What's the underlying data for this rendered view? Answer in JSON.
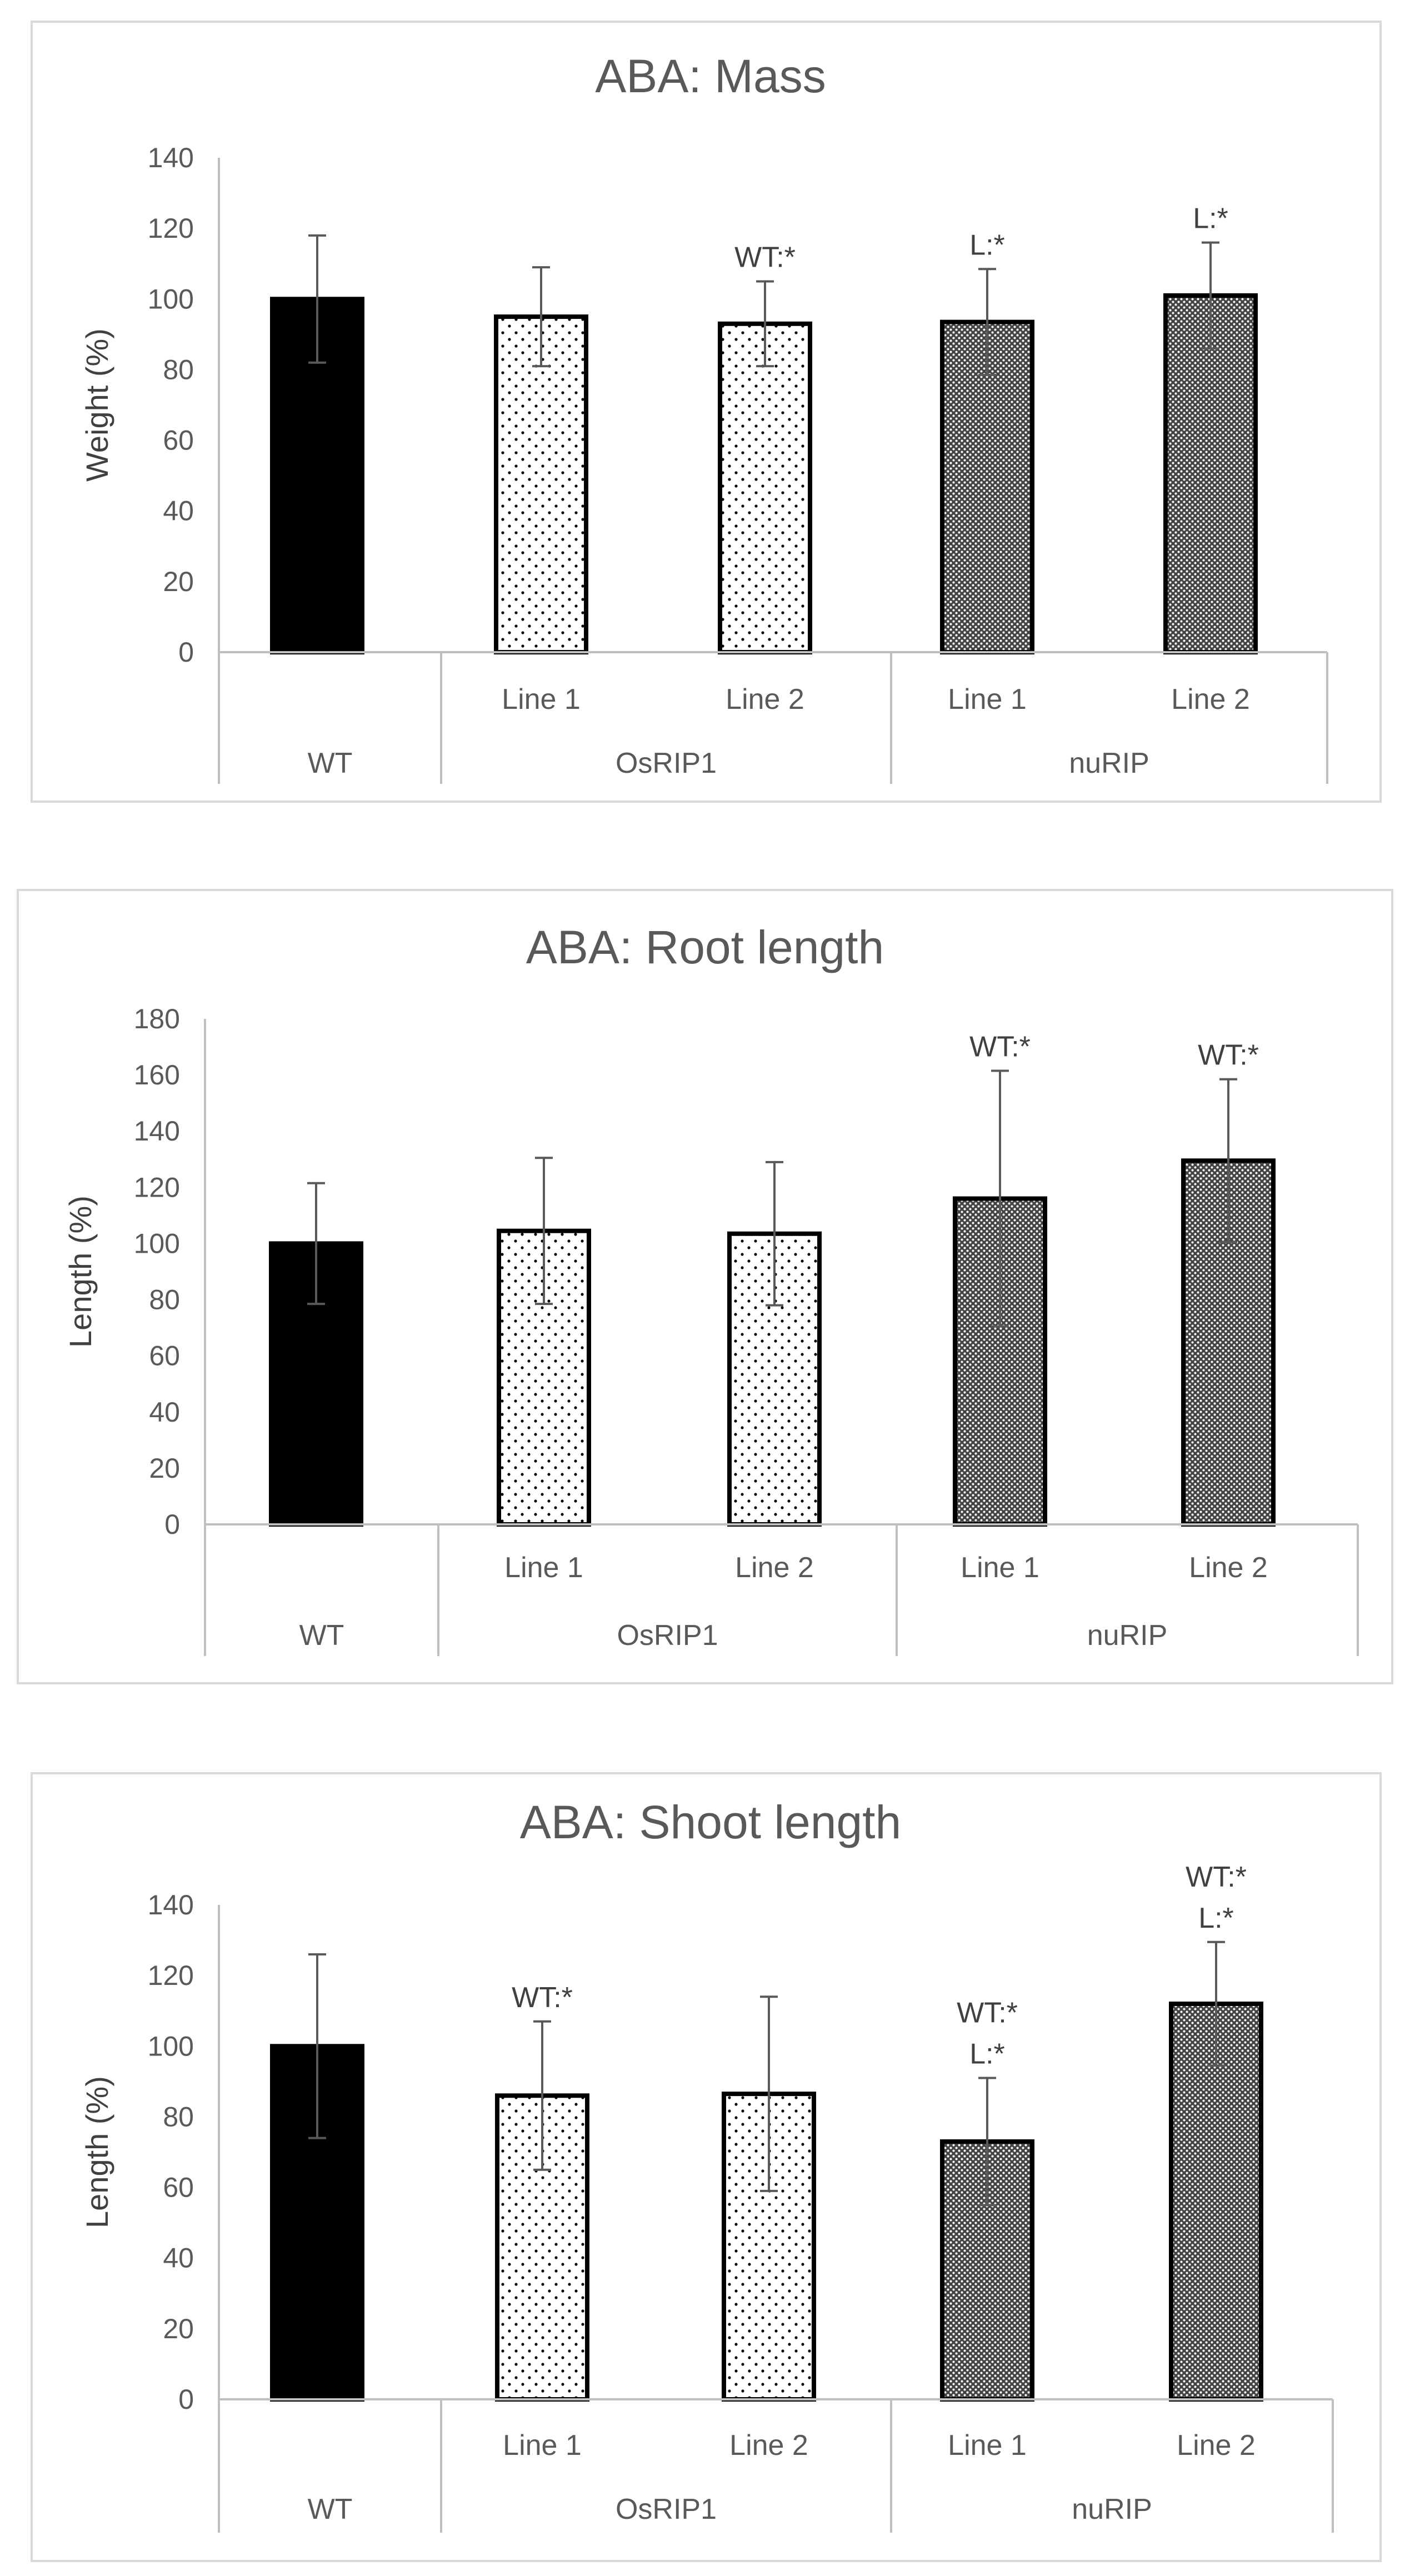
{
  "chart_data": [
    {
      "type": "bar",
      "title": "ABA: Mass",
      "ylabel": "Weight (%)",
      "xlabel": "",
      "ylim": [
        0,
        140
      ],
      "yticks": [
        0,
        20,
        40,
        60,
        80,
        100,
        120,
        140
      ],
      "groups": [
        {
          "label": "WT",
          "categories": [
            ""
          ]
        },
        {
          "label": "OsRIP1",
          "categories": [
            "Line 1",
            "Line 2"
          ]
        },
        {
          "label": "nuRIP",
          "categories": [
            "Line 1",
            "Line 2"
          ]
        }
      ],
      "bars": [
        {
          "group": "WT",
          "category": "",
          "value": 100,
          "error": 18,
          "annotation": []
        },
        {
          "group": "OsRIP1",
          "category": "Line 1",
          "value": 95,
          "error": 14,
          "annotation": []
        },
        {
          "group": "OsRIP1",
          "category": "Line 2",
          "value": 93,
          "error": 12,
          "annotation": [
            "WT:*"
          ]
        },
        {
          "group": "nuRIP",
          "category": "Line 1",
          "value": 93.5,
          "error": 15,
          "annotation": [
            "L:*"
          ]
        },
        {
          "group": "nuRIP",
          "category": "Line 2",
          "value": 101,
          "error": 15,
          "annotation": [
            "L:*"
          ]
        }
      ]
    },
    {
      "type": "bar",
      "title": "ABA: Root length",
      "ylabel": "Length (%)",
      "xlabel": "",
      "ylim": [
        0,
        180
      ],
      "yticks": [
        0,
        20,
        40,
        60,
        80,
        100,
        120,
        140,
        160,
        180
      ],
      "groups": [
        {
          "label": "WT",
          "categories": [
            ""
          ]
        },
        {
          "label": "OsRIP1",
          "categories": [
            "Line 1",
            "Line 2"
          ]
        },
        {
          "label": "nuRIP",
          "categories": [
            "Line 1",
            "Line 2"
          ]
        }
      ],
      "bars": [
        {
          "group": "WT",
          "category": "",
          "value": 100,
          "error": 21.5,
          "annotation": []
        },
        {
          "group": "OsRIP1",
          "category": "Line 1",
          "value": 104.5,
          "error": 26,
          "annotation": []
        },
        {
          "group": "OsRIP1",
          "category": "Line 2",
          "value": 103.5,
          "error": 25.5,
          "annotation": []
        },
        {
          "group": "nuRIP",
          "category": "Line 1",
          "value": 116,
          "error": 45.5,
          "annotation": [
            "WT:*"
          ]
        },
        {
          "group": "nuRIP",
          "category": "Line 2",
          "value": 129.5,
          "error": 29,
          "annotation": [
            "WT:*"
          ]
        }
      ]
    },
    {
      "type": "bar",
      "title": "ABA: Shoot length",
      "ylabel": "Length (%)",
      "xlabel": "",
      "ylim": [
        0,
        140
      ],
      "yticks": [
        0,
        20,
        40,
        60,
        80,
        100,
        120,
        140
      ],
      "groups": [
        {
          "label": "WT",
          "categories": [
            ""
          ]
        },
        {
          "label": "OsRIP1",
          "categories": [
            "Line 1",
            "Line 2"
          ]
        },
        {
          "label": "nuRIP",
          "categories": [
            "Line 1",
            "Line 2"
          ]
        }
      ],
      "bars": [
        {
          "group": "WT",
          "category": "",
          "value": 100,
          "error": 26,
          "annotation": []
        },
        {
          "group": "OsRIP1",
          "category": "Line 1",
          "value": 86,
          "error": 21,
          "annotation": [
            "WT:*"
          ]
        },
        {
          "group": "OsRIP1",
          "category": "Line 2",
          "value": 86.5,
          "error": 27.5,
          "annotation": []
        },
        {
          "group": "nuRIP",
          "category": "Line 1",
          "value": 73,
          "error": 18,
          "annotation": [
            "WT:*",
            "L:*"
          ]
        },
        {
          "group": "nuRIP",
          "category": "Line 2",
          "value": 112,
          "error": 17.5,
          "annotation": [
            "WT:*",
            "L:*"
          ]
        }
      ]
    }
  ],
  "fills": {
    "WT": "solid",
    "OsRIP1": "sparse-dots",
    "nuRIP": "dense-dots"
  },
  "colors": {
    "bar_stroke": "#000000",
    "bar_solid": "#000000",
    "axis": "#bfbfbf",
    "text": "#595959",
    "error_bar": "#595959",
    "frame": "#d9d9d9"
  }
}
